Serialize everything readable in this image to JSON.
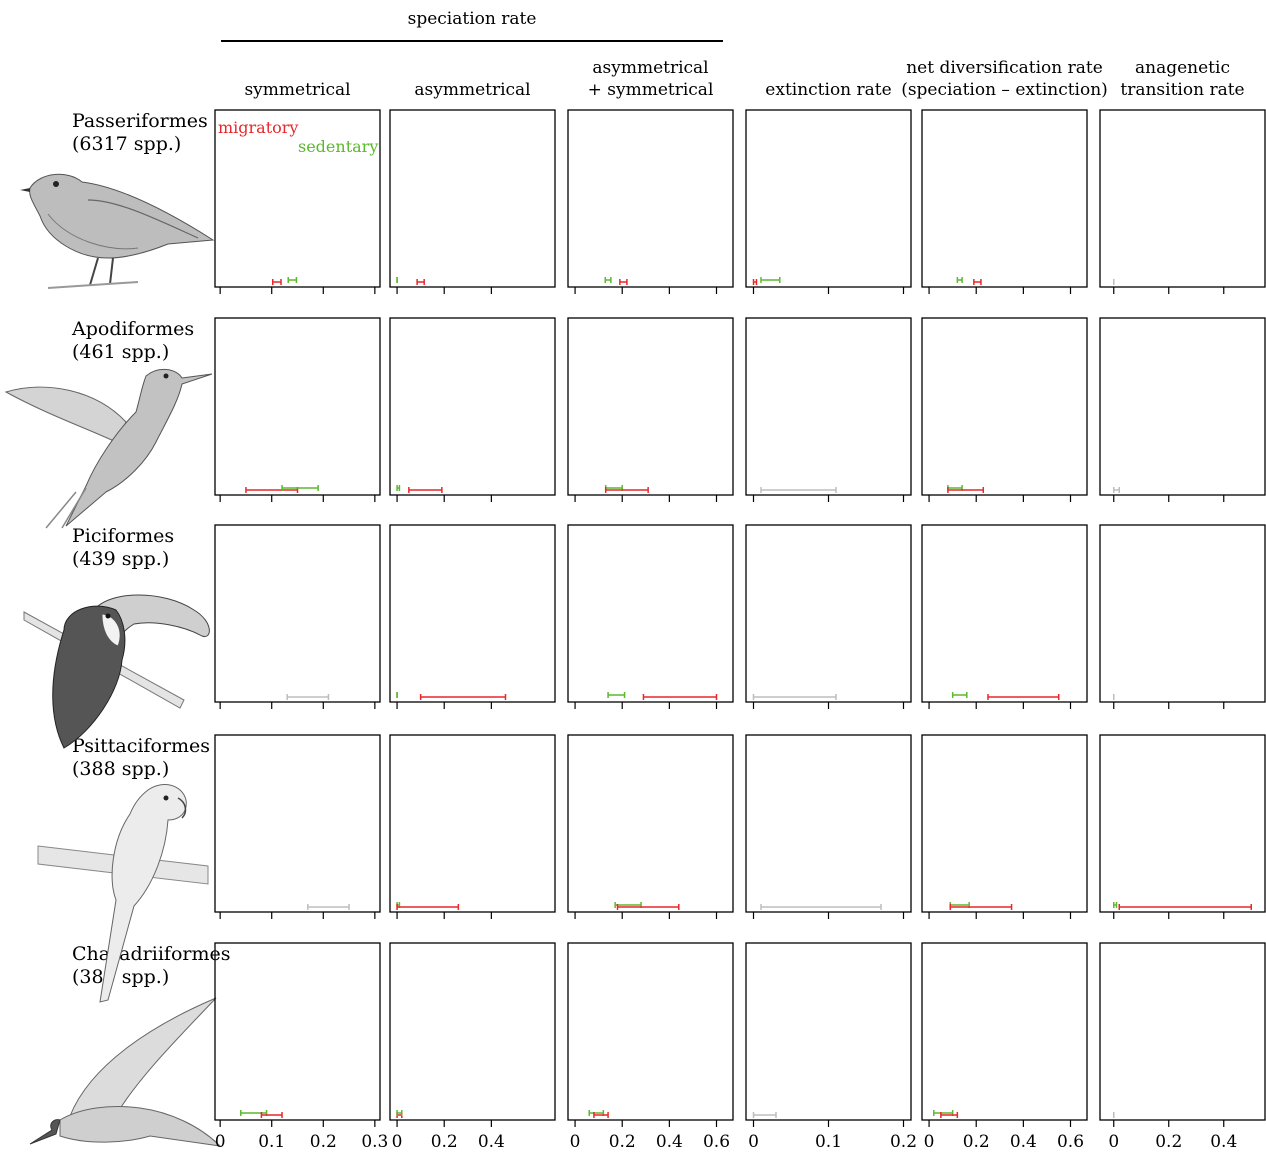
{
  "figure": {
    "group_header": "speciation rate",
    "columns": [
      {
        "title": [
          "symmetrical"
        ]
      },
      {
        "title": [
          "asymmetrical"
        ]
      },
      {
        "title": [
          "asymmetrical",
          "+ symmetrical"
        ]
      },
      {
        "title": [
          "extinction rate"
        ]
      },
      {
        "title": [
          "net diversification rate",
          "(speciation – extinction)"
        ]
      },
      {
        "title": [
          "anagenetic",
          "transition rate"
        ]
      }
    ],
    "rows": [
      {
        "name": "Passeriformes",
        "count": "(6317 spp.)"
      },
      {
        "name": "Apodiformes",
        "count": "(461 spp.)"
      },
      {
        "name": "Piciformes",
        "count": "(439 spp.)"
      },
      {
        "name": "Psittaciformes",
        "count": "(388 spp.)"
      },
      {
        "name": "Charadriiformes",
        "count": "(385 spp.)"
      }
    ],
    "colors": {
      "migratory": "#e8272a",
      "sedentary": "#5cb82e",
      "combined": "#bdbdbd"
    }
  },
  "chart_data": {
    "type": "area",
    "legend": {
      "migratory": "migratory",
      "sedentary": "sedentary",
      "placement": "inside top-left of first panel"
    },
    "axes": [
      {
        "column": "symmetrical",
        "xlim": [
          -0.01,
          0.31
        ],
        "ticks": [
          0,
          0.1,
          0.2,
          0.3
        ],
        "tick_labels": [
          "0",
          "0.1",
          "0.2",
          "0.3"
        ]
      },
      {
        "column": "asymmetrical",
        "xlim": [
          -0.03,
          0.67
        ],
        "ticks": [
          0,
          0.2,
          0.4
        ],
        "tick_labels": [
          "0",
          "0.2",
          "0.4"
        ]
      },
      {
        "column": "asymmetrical + symmetrical",
        "xlim": [
          -0.03,
          0.67
        ],
        "ticks": [
          0,
          0.2,
          0.4,
          0.6
        ],
        "tick_labels": [
          "0",
          "0.2",
          "0.4",
          "0.6"
        ]
      },
      {
        "column": "extinction rate",
        "xlim": [
          -0.01,
          0.21
        ],
        "ticks": [
          0,
          0.1,
          0.2
        ],
        "tick_labels": [
          "0",
          "0.1",
          "0.2"
        ]
      },
      {
        "column": "net diversification rate",
        "xlim": [
          -0.03,
          0.67
        ],
        "ticks": [
          0,
          0.2,
          0.4,
          0.6
        ],
        "tick_labels": [
          "0",
          "0.2",
          "0.4",
          "0.6"
        ]
      },
      {
        "column": "anagenetic transition rate",
        "xlim": [
          -0.05,
          0.55
        ],
        "ticks": [
          0,
          0.2,
          0.4
        ],
        "tick_labels": [
          "0",
          "0.2",
          "0.4"
        ]
      }
    ],
    "panels": [
      [
        [
          {
            "series": "migratory",
            "mode": "M",
            "height": 0.92,
            "left_sd": 0.004,
            "right_sd": 0.004,
            "ci": [
              0.102,
              0.118
            ]
          },
          {
            "series": "sedentary",
            "mode": "S",
            "height": 1.0,
            "left_sd": 0.004,
            "right_sd": 0.004,
            "ci": [
              0.132,
              0.148
            ]
          }
        ],
        [
          {
            "series": "sedentary",
            "mode": "S",
            "height": 1.0,
            "left_sd": 0.002,
            "right_sd": 0.002,
            "ci": [
              0,
              0
            ]
          },
          {
            "series": "migratory",
            "mode": "M",
            "height": 0.75,
            "left_sd": 0.006,
            "right_sd": 0.006,
            "ci": [
              0.085,
              0.115
            ]
          }
        ],
        [
          {
            "series": "sedentary",
            "mode": "S",
            "height": 0.96,
            "left_sd": 0.006,
            "right_sd": 0.006,
            "ci": [
              0.128,
              0.152
            ]
          },
          {
            "series": "migratory",
            "mode": "M",
            "height": 0.54,
            "left_sd": 0.008,
            "right_sd": 0.008,
            "ci": [
              0.19,
              0.22
            ]
          }
        ],
        [
          {
            "series": "migratory",
            "mode": "M",
            "height": 1.0,
            "left_sd": 0.001,
            "right_sd": 0.002,
            "ci": [
              0,
              0.004
            ]
          },
          {
            "series": "sedentary",
            "mode": "S",
            "height": 0.35,
            "left_sd": 0.005,
            "right_sd": 0.006,
            "ci": [
              0.01,
              0.035
            ]
          }
        ],
        [
          {
            "series": "sedentary",
            "mode": "S",
            "height": 1.0,
            "left_sd": 0.006,
            "right_sd": 0.006,
            "ci": [
              0.12,
              0.14
            ]
          },
          {
            "series": "migratory",
            "mode": "M",
            "height": 0.55,
            "left_sd": 0.007,
            "right_sd": 0.007,
            "ci": [
              0.19,
              0.22
            ]
          }
        ],
        [
          {
            "series": "combined",
            "mode": "C",
            "height": 0.05,
            "left_sd": 0.002,
            "right_sd": 0.002,
            "ci": [
              0,
              0
            ]
          }
        ]
      ],
      [
        [
          {
            "series": "migratory",
            "mode": "M",
            "height": 0.31,
            "left_sd": 0.02,
            "right_sd": 0.025,
            "ci": [
              0.05,
              0.15
            ]
          },
          {
            "series": "sedentary",
            "mode": "S",
            "height": 0.42,
            "left_sd": 0.016,
            "right_sd": 0.02,
            "ci": [
              0.12,
              0.19
            ]
          }
        ],
        [
          {
            "series": "sedentary",
            "mode": "S",
            "height": 1.0,
            "left_sd": 0.002,
            "right_sd": 0.002,
            "ci": [
              0,
              0.01
            ]
          },
          {
            "series": "migratory",
            "mode": "M",
            "height": 0.2,
            "left_sd": 0.025,
            "right_sd": 0.045,
            "ci": [
              0.05,
              0.19
            ]
          }
        ],
        [
          {
            "series": "sedentary",
            "mode": "S",
            "height": 0.78,
            "left_sd": 0.02,
            "right_sd": 0.025,
            "ci": [
              0.13,
              0.2
            ]
          },
          {
            "series": "migratory",
            "mode": "M",
            "height": 0.45,
            "left_sd": 0.03,
            "right_sd": 0.045,
            "ci": [
              0.13,
              0.31
            ]
          }
        ],
        [
          {
            "series": "combined",
            "mode": "C",
            "height": 0.96,
            "left_sd": 0.026,
            "right_sd": 0.026,
            "ci": [
              0.01,
              0.11
            ]
          }
        ],
        [
          {
            "series": "sedentary",
            "mode": "S",
            "height": 0.78,
            "left_sd": 0.015,
            "right_sd": 0.02,
            "ci": [
              0.08,
              0.14
            ]
          },
          {
            "series": "migratory",
            "mode": "M",
            "height": 0.42,
            "left_sd": 0.025,
            "right_sd": 0.045,
            "ci": [
              0.08,
              0.23
            ]
          }
        ],
        [
          {
            "series": "combined",
            "mode": "C",
            "height": 0.96,
            "left_sd": 0.002,
            "right_sd": 0.003,
            "ci": [
              0,
              0.02
            ]
          }
        ]
      ],
      [
        [
          {
            "series": "combined",
            "mode": "C",
            "height": 0.28,
            "left_sd": 0.013,
            "right_sd": 0.015,
            "ci": [
              0.13,
              0.21
            ]
          }
        ],
        [
          {
            "series": "sedentary",
            "mode": "S",
            "height": 1.0,
            "left_sd": 0.002,
            "right_sd": 0.002,
            "ci": [
              0,
              0
            ]
          },
          {
            "series": "migratory",
            "mode": "M",
            "height": 0.07,
            "left_sd": 0.09,
            "right_sd": 0.11,
            "ci": [
              0.1,
              0.46
            ]
          }
        ],
        [
          {
            "series": "sedentary",
            "mode": "S",
            "height": 0.91,
            "left_sd": 0.015,
            "right_sd": 0.02,
            "ci": [
              0.14,
              0.21
            ]
          },
          {
            "series": "migratory",
            "mode": "M",
            "height": 0.2,
            "left_sd": 0.06,
            "right_sd": 0.065,
            "ci": [
              0.29,
              0.6
            ]
          }
        ],
        [
          {
            "series": "combined",
            "mode": "C",
            "height": 0.95,
            "left_sd": 0.022,
            "right_sd": 0.025,
            "ci": [
              0,
              0.11
            ]
          }
        ],
        [
          {
            "series": "sedentary",
            "mode": "S",
            "height": 0.9,
            "left_sd": 0.015,
            "right_sd": 0.015,
            "ci": [
              0.1,
              0.16
            ]
          },
          {
            "series": "migratory",
            "mode": "M",
            "height": 0.22,
            "left_sd": 0.07,
            "right_sd": 0.07,
            "ci": [
              0.25,
              0.55
            ]
          }
        ],
        [
          {
            "series": "combined",
            "mode": "C",
            "height": 0.98,
            "left_sd": 0.002,
            "right_sd": 0.002,
            "ci": [
              0,
              0
            ]
          }
        ]
      ],
      [
        [
          {
            "series": "combined",
            "mode": "C",
            "height": 0.25,
            "left_sd": 0.02,
            "right_sd": 0.022,
            "ci": [
              0.17,
              0.25
            ]
          }
        ],
        [
          {
            "series": "sedentary",
            "mode": "S",
            "height": 1.0,
            "left_sd": 0.002,
            "right_sd": 0.003,
            "ci": [
              0,
              0.01
            ]
          },
          {
            "series": "migratory",
            "mode": "M",
            "height": 0.12,
            "left_sd": 0.015,
            "right_sd": 0.3,
            "ci": [
              0,
              0.26
            ]
          }
        ],
        [
          {
            "series": "sedentary",
            "mode": "S",
            "height": 0.9,
            "left_sd": 0.02,
            "right_sd": 0.022,
            "ci": [
              0.17,
              0.28
            ]
          },
          {
            "series": "migratory",
            "mode": "M",
            "height": 0.48,
            "left_sd": 0.025,
            "right_sd": 0.08,
            "ci": [
              0.18,
              0.44
            ]
          }
        ],
        [
          {
            "series": "combined",
            "mode": "C",
            "height": 0.93,
            "left_sd": 0.03,
            "right_sd": 0.03,
            "ci": [
              0.01,
              0.17
            ]
          }
        ],
        [
          {
            "series": "sedentary",
            "mode": "S",
            "height": 0.88,
            "left_sd": 0.015,
            "right_sd": 0.018,
            "ci": [
              0.09,
              0.17
            ]
          },
          {
            "series": "migratory",
            "mode": "M",
            "height": 0.45,
            "left_sd": 0.025,
            "right_sd": 0.08,
            "ci": [
              0.09,
              0.35
            ]
          }
        ],
        [
          {
            "series": "sedentary",
            "mode": "S",
            "height": 0.95,
            "left_sd": 0.003,
            "right_sd": 0.004,
            "ci": [
              0,
              0.01
            ]
          },
          {
            "series": "migratory",
            "mode": "M",
            "height": 0.08,
            "left_sd": 0.07,
            "right_sd": 0.15,
            "ci": [
              0.02,
              0.5
            ]
          }
        ]
      ],
      [
        [
          {
            "series": "sedentary",
            "mode": "S",
            "height": 0.5,
            "left_sd": 0.009,
            "right_sd": 0.01,
            "ci": [
              0.04,
              0.09
            ]
          },
          {
            "series": "migratory",
            "mode": "M",
            "height": 0.5,
            "left_sd": 0.01,
            "right_sd": 0.011,
            "ci": [
              0.08,
              0.12
            ]
          }
        ],
        [
          {
            "series": "migratory",
            "mode": "M",
            "height": 1.0,
            "left_sd": 0.004,
            "right_sd": 0.004,
            "ci": [
              0,
              0.02
            ]
          },
          {
            "series": "sedentary",
            "mode": "S",
            "height": 0.55,
            "left_sd": 0.004,
            "right_sd": 0.005,
            "ci": [
              0,
              0.02
            ]
          }
        ],
        [
          {
            "series": "sedentary",
            "mode": "S",
            "height": 0.8,
            "left_sd": 0.01,
            "right_sd": 0.01,
            "ci": [
              0.06,
              0.12
            ]
          },
          {
            "series": "migratory",
            "mode": "M",
            "height": 0.92,
            "left_sd": 0.01,
            "right_sd": 0.01,
            "ci": [
              0.08,
              0.14
            ]
          }
        ],
        [
          {
            "series": "combined",
            "mode": "C",
            "height": 0.93,
            "left_sd": 0.01,
            "right_sd": 0.014,
            "ci": [
              0,
              0.03
            ]
          }
        ],
        [
          {
            "series": "sedentary",
            "mode": "S",
            "height": 0.78,
            "left_sd": 0.01,
            "right_sd": 0.01,
            "ci": [
              0.02,
              0.1
            ]
          },
          {
            "series": "migratory",
            "mode": "M",
            "height": 0.92,
            "left_sd": 0.01,
            "right_sd": 0.01,
            "ci": [
              0.05,
              0.12
            ]
          }
        ],
        [
          {
            "series": "combined",
            "mode": "C",
            "height": 0.96,
            "left_sd": 0.002,
            "right_sd": 0.002,
            "ci": [
              0,
              0
            ]
          }
        ]
      ]
    ]
  }
}
